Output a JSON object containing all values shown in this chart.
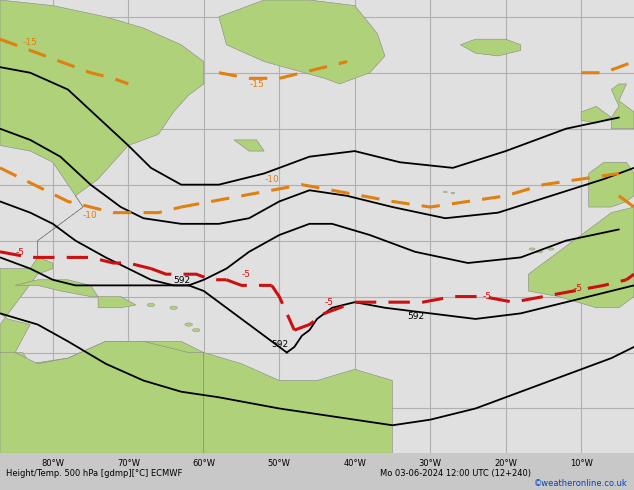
{
  "title_left": "Height/Temp. 500 hPa [gdmp][°C] ECMWF",
  "title_right": "Mo 03-06-2024 12:00 UTC (12+240)",
  "copyright": "©weatheronline.co.uk",
  "bg_color": "#c8c8c8",
  "ocean_color": "#e0e0e0",
  "land_color": "#aed17a",
  "land_edge_color": "#888888",
  "grid_color": "#b0b0b0",
  "height_color": "#000000",
  "orange_color": "#e08010",
  "red_color": "#cc1010",
  "bottom_text_color": "#000000",
  "copyright_color": "#0044bb",
  "figsize": [
    6.34,
    4.9
  ],
  "dpi": 100,
  "lon_min": -87,
  "lon_max": -3,
  "lat_min": -8,
  "lat_max": 73,
  "lon_ticks": [
    -80,
    -70,
    -60,
    -50,
    -40,
    -30,
    -20,
    -10
  ],
  "lon_labels": [
    "80°W",
    "70°W",
    "60°W",
    "50°W",
    "40°W",
    "30°W",
    "20°W",
    "10°W"
  ],
  "lat_ticks": [
    0,
    10,
    20,
    30,
    40,
    50,
    60,
    70
  ]
}
